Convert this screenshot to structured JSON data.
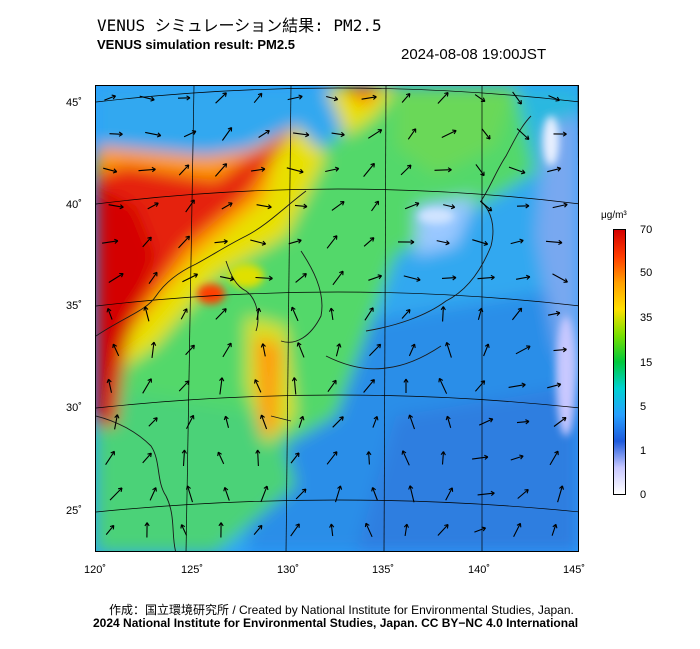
{
  "header": {
    "title_jp": "VENUS シミュレーション結果: PM2.5",
    "title_en": "VENUS simulation result: PM2.5",
    "timestamp": "2024-08-08 19:00JST"
  },
  "map": {
    "lat_labels": [
      "45˚",
      "40˚",
      "35˚",
      "30˚",
      "25˚"
    ],
    "lon_labels": [
      "120˚",
      "125˚",
      "130˚",
      "135˚",
      "140˚",
      "145˚"
    ],
    "lat_values": [
      45,
      40,
      35,
      30,
      25
    ],
    "lon_values": [
      120,
      125,
      130,
      135,
      140,
      145
    ],
    "extent": {
      "lon_min": 120,
      "lon_max": 145,
      "lat_min": 23,
      "lat_max": 46
    }
  },
  "colorbar": {
    "unit": "μg/m³",
    "ticks": [
      "70",
      "50",
      "35",
      "15",
      "5",
      "1",
      "0"
    ],
    "colors": [
      "#d40000",
      "#ff3c00",
      "#ffa000",
      "#ffe000",
      "#78e000",
      "#00c83c",
      "#00d2d2",
      "#28a0ff",
      "#1e5adc",
      "#c8c8ff",
      "#ffffff"
    ]
  },
  "credits": {
    "line1": "作成：国立環境研究所 / Created by National Institute for Environmental Studies, Japan.",
    "line2": "2024 National Institute for Environmental Studies, Japan. CC BY−NC 4.0 International"
  }
}
